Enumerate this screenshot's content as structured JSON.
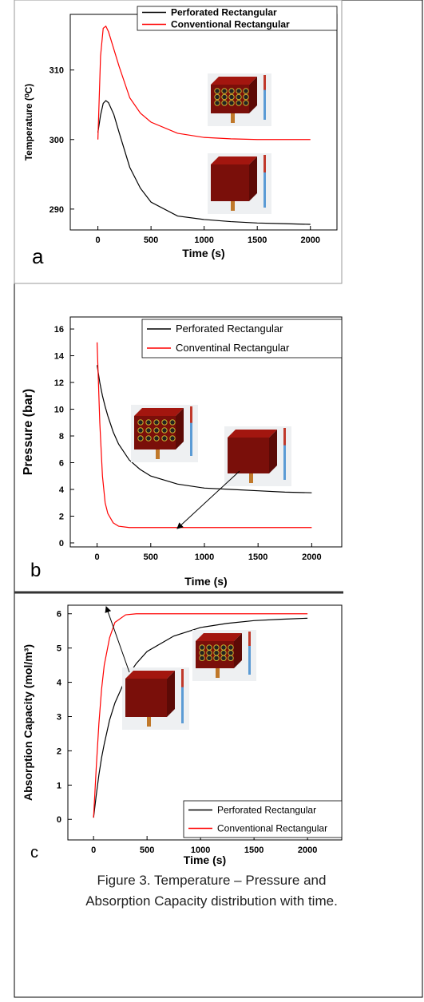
{
  "chart_data": [
    {
      "type": "line",
      "panel_label": "a",
      "y_label": "Temperature (⁰C)",
      "x_label": "Time (s)",
      "x": [
        0,
        25,
        50,
        75,
        100,
        150,
        200,
        300,
        400,
        500,
        750,
        1000,
        1250,
        1500,
        1750,
        2000
      ],
      "series": [
        {
          "name": "Perforated Rectangular",
          "color": "#000000",
          "values": [
            301,
            303.5,
            305.2,
            305.6,
            305.3,
            303.6,
            301,
            296,
            293,
            291,
            289,
            288.5,
            288.2,
            288,
            287.9,
            287.8
          ]
        },
        {
          "name": "Conventional Rectangular",
          "color": "#ff0000",
          "values": [
            300,
            312,
            316,
            316.3,
            315.5,
            313,
            310.5,
            306,
            303.8,
            302.5,
            300.9,
            300.3,
            300.1,
            300,
            300,
            300
          ]
        }
      ],
      "xlim": [
        -260,
        2250
      ],
      "ylim": [
        287,
        318
      ],
      "xticks": [
        0,
        500,
        1000,
        1500,
        2000
      ],
      "yticks": [
        290,
        300,
        310
      ],
      "legend": "upper right"
    },
    {
      "type": "line",
      "panel_label": "b",
      "y_label": "Pressure (bar)",
      "x_label": "Time (s)",
      "x": [
        0,
        25,
        50,
        75,
        100,
        150,
        200,
        300,
        400,
        500,
        750,
        1000,
        1250,
        1500,
        1750,
        2000
      ],
      "series": [
        {
          "name": "Perforated Rectangular",
          "color": "#000000",
          "values": [
            13.3,
            12,
            11,
            10.2,
            9.5,
            8.3,
            7.4,
            6.2,
            5.5,
            5,
            4.4,
            4.1,
            4,
            3.9,
            3.8,
            3.75
          ]
        },
        {
          "name": "Conventinal Rectangular",
          "color": "#ff0000",
          "values": [
            15,
            9,
            5,
            3,
            2.2,
            1.5,
            1.25,
            1.15,
            1.15,
            1.15,
            1.15,
            1.15,
            1.15,
            1.15,
            1.15,
            1.15
          ]
        }
      ],
      "xlim": [
        -250,
        2280
      ],
      "ylim": [
        -0.3,
        16.9
      ],
      "xticks": [
        0,
        500,
        1000,
        1500,
        2000
      ],
      "yticks": [
        0,
        2,
        4,
        6,
        8,
        10,
        12,
        14,
        16
      ],
      "legend": "upper right"
    },
    {
      "type": "line",
      "panel_label": "c",
      "y_label": "Absorption Capacity (mol/m³)",
      "x_label": "Time (s)",
      "x": [
        0,
        25,
        50,
        75,
        100,
        150,
        200,
        300,
        400,
        500,
        750,
        1000,
        1250,
        1500,
        1750,
        2000
      ],
      "series": [
        {
          "name": "Perforated Rectangular",
          "color": "#000000",
          "values": [
            0.05,
            0.7,
            1.3,
            1.8,
            2.2,
            2.9,
            3.4,
            4.1,
            4.55,
            4.9,
            5.35,
            5.6,
            5.72,
            5.8,
            5.84,
            5.87
          ]
        },
        {
          "name": "Conventional Rectangular",
          "color": "#ff0000",
          "values": [
            0.05,
            1.5,
            2.8,
            3.8,
            4.5,
            5.3,
            5.75,
            5.97,
            6,
            6,
            6,
            6,
            6,
            6,
            6,
            6
          ]
        }
      ],
      "xlim": [
        -240,
        2320
      ],
      "ylim": [
        -0.6,
        6.25
      ],
      "xticks": [
        0,
        500,
        1000,
        1500,
        2000
      ],
      "yticks": [
        0,
        1,
        2,
        3,
        4,
        5,
        6
      ],
      "legend": "lower right"
    }
  ],
  "caption": [
    "Figure 3. Temperature – Pressure and",
    "Absorption Capacity distribution with time."
  ]
}
